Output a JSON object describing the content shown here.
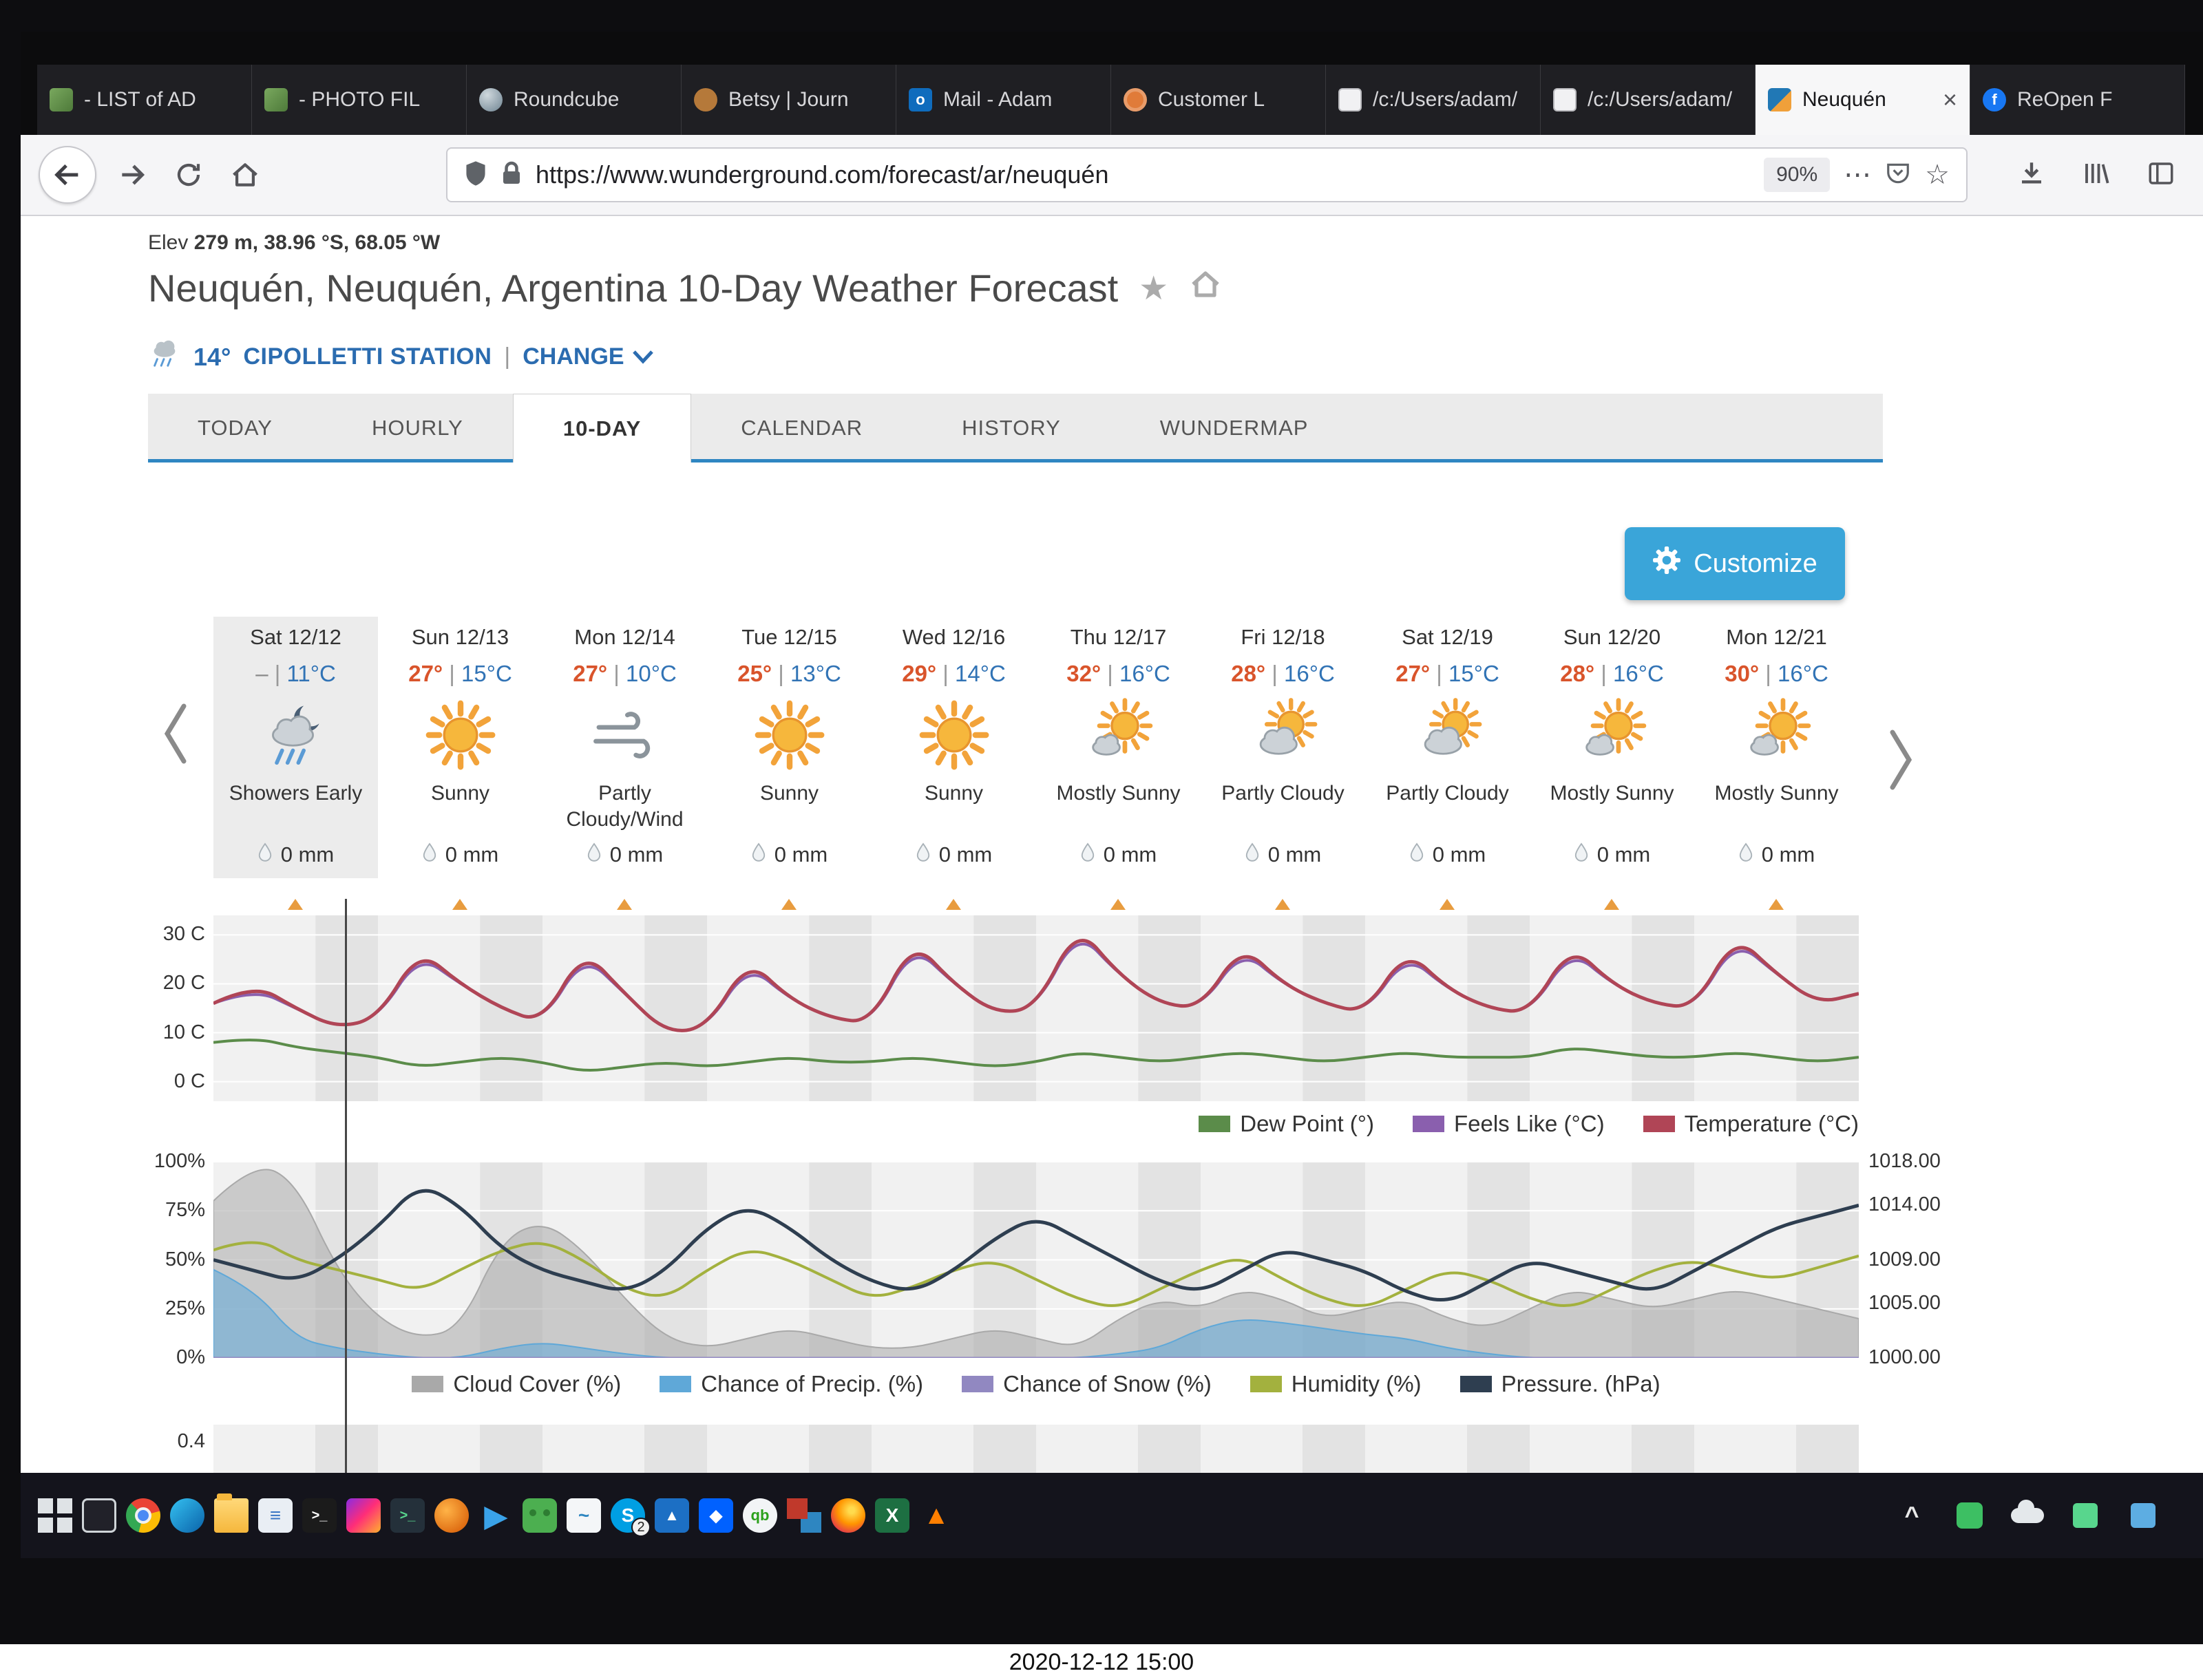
{
  "photo": {
    "caption": "2020-12-12 15:00"
  },
  "icons": {
    "favorite_star": "★",
    "bookmark_star": "☆",
    "page_actions": "⋯",
    "tab_close": "×"
  },
  "colors": {
    "high_temp": "#d9542b",
    "low_temp": "#3173b5",
    "accent_blue": "#2b6cb0",
    "nav_underline": "#2f86c2",
    "customize_button": "#3aa5d9",
    "day_marker": "#e89c3f"
  },
  "browser": {
    "tabs": [
      {
        "label": "- LIST of AD",
        "icon": "photo-folder-icon"
      },
      {
        "label": "- PHOTO FIL",
        "icon": "photo-folder-icon"
      },
      {
        "label": "Roundcube",
        "icon": "roundcube-icon"
      },
      {
        "label": "Betsy | Journ",
        "icon": "journal-icon"
      },
      {
        "label": "Mail - Adam",
        "icon": "outlook-icon",
        "glyph": "o"
      },
      {
        "label": "Customer L",
        "icon": "customer-icon"
      },
      {
        "label": "/c:/Users/adam/",
        "icon": "file-icon"
      },
      {
        "label": "/c:/Users/adam/",
        "icon": "file-icon"
      },
      {
        "label": "Neuquén",
        "icon": "wunderground-icon",
        "active": true
      },
      {
        "label": "ReOpen F",
        "icon": "facebook-icon",
        "glyph": "f"
      }
    ],
    "toolbar": {
      "url": "https://www.wunderground.com/forecast/ar/neuquén",
      "zoom": "90%"
    }
  },
  "page": {
    "elevation_label": "Elev",
    "elevation_value": "279 m, 38.96 °S, 68.05 °W",
    "title": "Neuquén, Neuquén, Argentina 10-Day Weather Forecast",
    "station": {
      "temp": "14°",
      "name": "CIPOLLETTI STATION",
      "divider": "|",
      "change_label": "CHANGE"
    },
    "nav_tabs": [
      {
        "label": "TODAY"
      },
      {
        "label": "HOURLY"
      },
      {
        "label": "10-DAY",
        "active": true
      },
      {
        "label": "CALENDAR"
      },
      {
        "label": "HISTORY"
      },
      {
        "label": "WUNDERMAP"
      }
    ],
    "customize_label": "Customize",
    "temp_divider": "|",
    "forecast_days": [
      {
        "date": "Sat 12/12",
        "high": "–",
        "high_muted": true,
        "low": "11°C",
        "icon": "showers-early",
        "condition": "Showers Early",
        "precip": "0 mm",
        "selected": true
      },
      {
        "date": "Sun 12/13",
        "high": "27°",
        "low": "15°C",
        "icon": "sunny",
        "condition": "Sunny",
        "precip": "0 mm"
      },
      {
        "date": "Mon 12/14",
        "high": "27°",
        "low": "10°C",
        "icon": "wind",
        "condition": "Partly Cloudy/Wind",
        "precip": "0 mm"
      },
      {
        "date": "Tue 12/15",
        "high": "25°",
        "low": "13°C",
        "icon": "sunny",
        "condition": "Sunny",
        "precip": "0 mm"
      },
      {
        "date": "Wed 12/16",
        "high": "29°",
        "low": "14°C",
        "icon": "sunny",
        "condition": "Sunny",
        "precip": "0 mm"
      },
      {
        "date": "Thu 12/17",
        "high": "32°",
        "low": "16°C",
        "icon": "mostly-sunny",
        "condition": "Mostly Sunny",
        "precip": "0 mm"
      },
      {
        "date": "Fri 12/18",
        "high": "28°",
        "low": "16°C",
        "icon": "partly-cloudy",
        "condition": "Partly Cloudy",
        "precip": "0 mm"
      },
      {
        "date": "Sat 12/19",
        "high": "27°",
        "low": "15°C",
        "icon": "partly-cloudy",
        "condition": "Partly Cloudy",
        "precip": "0 mm"
      },
      {
        "date": "Sun 12/20",
        "high": "28°",
        "low": "16°C",
        "icon": "mostly-sunny",
        "condition": "Mostly Sunny",
        "precip": "0 mm"
      },
      {
        "date": "Mon 12/21",
        "high": "30°",
        "low": "16°C",
        "icon": "mostly-sunny",
        "condition": "Mostly Sun­ny",
        "precip": "0 mm"
      }
    ]
  },
  "chart_data": [
    {
      "type": "line",
      "title": "Temperature / Feels Like / Dew Point over 10 days",
      "x_description": "10 days, 4 samples per day, Sat 12/12 – Mon 12/21",
      "ylim": [
        -4,
        34
      ],
      "yticks": [
        {
          "label": "30 C",
          "value": 30
        },
        {
          "label": "20 C",
          "value": 20
        },
        {
          "label": "10 C",
          "value": 10
        },
        {
          "label": "0 C",
          "value": 0
        }
      ],
      "grid": true,
      "legend_position": "bottom-right",
      "cursor_frac": 0.08,
      "series": [
        {
          "name": "Dew Point (°)",
          "color": "#5b8c4a",
          "width": 4,
          "values": [
            8,
            9,
            7,
            6,
            5,
            3,
            4,
            5,
            4,
            2,
            3,
            4,
            3,
            4,
            5,
            4,
            4,
            5,
            4,
            3,
            4,
            6,
            5,
            4,
            5,
            6,
            5,
            4,
            5,
            6,
            5,
            5,
            5,
            7,
            6,
            5,
            5,
            6,
            5,
            4,
            5
          ]
        },
        {
          "name": "Feels Like (°C)",
          "color": "#8a5fae",
          "width": 4,
          "values": [
            16,
            19,
            15,
            11,
            13,
            26,
            20,
            15,
            12,
            26,
            18,
            10,
            11,
            24,
            17,
            13,
            12,
            28,
            20,
            14,
            15,
            31,
            22,
            16,
            15,
            27,
            20,
            16,
            14,
            26,
            19,
            15,
            14,
            27,
            20,
            16,
            15,
            29,
            22,
            16,
            18
          ]
        },
        {
          "name": "Temperature (°C)",
          "color": "#b04556",
          "width": 5,
          "values": [
            16,
            20,
            15,
            11,
            13,
            27,
            20,
            15,
            12,
            27,
            18,
            10,
            11,
            25,
            17,
            13,
            12,
            29,
            20,
            14,
            15,
            32,
            22,
            16,
            15,
            28,
            20,
            16,
            14,
            27,
            19,
            15,
            14,
            28,
            20,
            16,
            15,
            30,
            22,
            16,
            18
          ]
        }
      ]
    },
    {
      "type": "line+area",
      "title": "Cloud Cover / Precip / Snow / Humidity / Pressure over 10 days",
      "ylim_left": [
        0,
        100
      ],
      "ylim_right": [
        1000,
        1018
      ],
      "yticks_left": [
        {
          "label": "100%",
          "value": 100
        },
        {
          "label": "75%",
          "value": 75
        },
        {
          "label": "50%",
          "value": 50
        },
        {
          "label": "25%",
          "value": 25
        },
        {
          "label": "0%",
          "value": 0
        }
      ],
      "yticks_right": [
        {
          "label": "1018.00",
          "value": 1018
        },
        {
          "label": "1014.00",
          "value": 1014
        },
        {
          "label": "1009.00",
          "value": 1009
        },
        {
          "label": "1005.00",
          "value": 1005
        },
        {
          "label": "1000.00",
          "value": 1000
        }
      ],
      "grid": true,
      "legend_position": "bottom-center",
      "series": [
        {
          "name": "Cloud Cover (%)",
          "color": "#a9a9a9",
          "style": "area",
          "values": [
            80,
            100,
            90,
            45,
            20,
            10,
            15,
            60,
            70,
            55,
            30,
            10,
            5,
            10,
            15,
            10,
            5,
            5,
            10,
            15,
            10,
            5,
            20,
            30,
            25,
            35,
            30,
            20,
            25,
            30,
            20,
            15,
            25,
            35,
            30,
            25,
            30,
            35,
            30,
            25,
            20
          ]
        },
        {
          "name": "Chance of Precip. (%)",
          "color": "#5fa8d8",
          "style": "area",
          "values": [
            45,
            35,
            10,
            5,
            2,
            0,
            0,
            5,
            8,
            5,
            2,
            0,
            0,
            0,
            0,
            0,
            0,
            0,
            0,
            0,
            0,
            0,
            2,
            5,
            15,
            20,
            18,
            15,
            12,
            10,
            5,
            2,
            0,
            0,
            0,
            0,
            0,
            0,
            0,
            0,
            0
          ]
        },
        {
          "name": "Chance of Snow (%)",
          "color": "#9188c1",
          "style": "line",
          "width": 3,
          "values": [
            0,
            0,
            0,
            0,
            0,
            0,
            0,
            0,
            0,
            0,
            0,
            0,
            0,
            0,
            0,
            0,
            0,
            0,
            0,
            0,
            0,
            0,
            0,
            0,
            0,
            0,
            0,
            0,
            0,
            0,
            0,
            0,
            0,
            0,
            0,
            0,
            0,
            0,
            0,
            0,
            0
          ]
        },
        {
          "name": "Humidity (%)",
          "color": "#a3b13e",
          "style": "line",
          "width": 4,
          "values": [
            55,
            62,
            50,
            45,
            40,
            34,
            45,
            55,
            60,
            50,
            35,
            30,
            45,
            56,
            50,
            40,
            30,
            36,
            45,
            50,
            40,
            30,
            25,
            35,
            45,
            52,
            40,
            30,
            25,
            35,
            45,
            40,
            30,
            25,
            35,
            45,
            50,
            44,
            40,
            46,
            52
          ]
        },
        {
          "name": "Pressure. (hPa)",
          "color": "#2e3e50",
          "style": "line",
          "axis": "right",
          "width": 5,
          "values": [
            1009,
            1008,
            1007,
            1009,
            1012,
            1016,
            1014,
            1010,
            1008,
            1007,
            1006,
            1008,
            1012,
            1014,
            1012,
            1009,
            1007,
            1006,
            1008,
            1011,
            1013,
            1011,
            1009,
            1007,
            1006,
            1008,
            1010,
            1009,
            1008,
            1006,
            1005,
            1007,
            1009,
            1008,
            1007,
            1006,
            1008,
            1010,
            1012,
            1013,
            1014
          ]
        }
      ]
    },
    {
      "type": "area",
      "title": "Precipitation amount (partially visible)",
      "yticks": [
        {
          "label": "0.4",
          "value": 0.4
        }
      ],
      "series": []
    }
  ],
  "taskbar": {
    "icons": [
      {
        "name": "start-button"
      },
      {
        "name": "task-view-icon"
      },
      {
        "name": "chrome-icon"
      },
      {
        "name": "edge-icon"
      },
      {
        "name": "file-explorer-icon"
      },
      {
        "name": "notes-icon",
        "glyph": "≡"
      },
      {
        "name": "command-prompt-icon",
        "glyph": ">_"
      },
      {
        "name": "design-app-icon"
      },
      {
        "name": "terminal-icon",
        "glyph": ">_"
      },
      {
        "name": "easybcd-icon"
      },
      {
        "name": "media-player-icon",
        "glyph": "▶"
      },
      {
        "name": "pia-vpn-icon"
      },
      {
        "name": "task-manager-icon",
        "glyph": "~"
      },
      {
        "name": "skype-icon",
        "glyph": "S",
        "badge": "2"
      },
      {
        "name": "photos-icon",
        "glyph": "▲"
      },
      {
        "name": "dropbox-icon",
        "glyph": "◆"
      },
      {
        "name": "quickbooks-icon",
        "glyph": "qb"
      },
      {
        "name": "remote-desktop-icon"
      },
      {
        "name": "firefox-icon"
      },
      {
        "name": "excel-icon",
        "glyph": "X"
      },
      {
        "name": "vlc-icon",
        "glyph": "▲"
      }
    ],
    "tray": [
      {
        "name": "tray-chevron-icon",
        "glyph": "^"
      },
      {
        "name": "pia-tray-icon"
      },
      {
        "name": "onedrive-icon"
      },
      {
        "name": "vpn-status-icon"
      },
      {
        "name": "network-icon"
      }
    ]
  }
}
